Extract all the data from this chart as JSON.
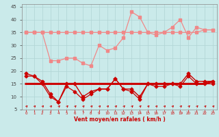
{
  "x": [
    0,
    1,
    2,
    3,
    4,
    5,
    6,
    7,
    8,
    9,
    10,
    11,
    12,
    13,
    14,
    15,
    16,
    17,
    18,
    19,
    20,
    21,
    22,
    23
  ],
  "salmon1": [
    35,
    35,
    35,
    35,
    35,
    35,
    35,
    35,
    35,
    35,
    35,
    35,
    35,
    35,
    35,
    35,
    35,
    35,
    35,
    35,
    35,
    35,
    36,
    36
  ],
  "salmon2": [
    35,
    35,
    35,
    24,
    24,
    25,
    25,
    23,
    22,
    30,
    28,
    29,
    33,
    43,
    41,
    35,
    34,
    35,
    37,
    40,
    33,
    37,
    36,
    36
  ],
  "red_main": [
    19,
    18,
    16,
    11,
    8,
    15,
    15,
    10,
    12,
    13,
    13,
    17,
    13,
    13,
    10,
    15,
    15,
    15,
    15,
    15,
    19,
    16,
    16,
    16
  ],
  "red_flat": [
    15,
    15,
    15,
    15,
    15,
    15,
    15,
    15,
    15,
    15,
    15,
    15,
    15,
    15,
    15,
    15,
    15,
    15,
    15,
    15,
    15,
    15,
    15,
    16
  ],
  "red_low": [
    18,
    18,
    15,
    10,
    8,
    14,
    12,
    9,
    11,
    13,
    13,
    17,
    13,
    12,
    9,
    15,
    14,
    14,
    15,
    14,
    18,
    15,
    15,
    15
  ],
  "bg_color": "#caeaea",
  "grid_color": "#b0d4d4",
  "salmon_color": "#f08888",
  "dark_red_color": "#cc0000",
  "xlabel": "Vent moyen/en rafales ( km/h )",
  "ylim": [
    5,
    46
  ],
  "xlim": [
    -0.5,
    23.5
  ],
  "yticks": [
    5,
    10,
    15,
    20,
    25,
    30,
    35,
    40,
    45
  ],
  "figwidth": 3.2,
  "figheight": 2.0,
  "dpi": 100
}
